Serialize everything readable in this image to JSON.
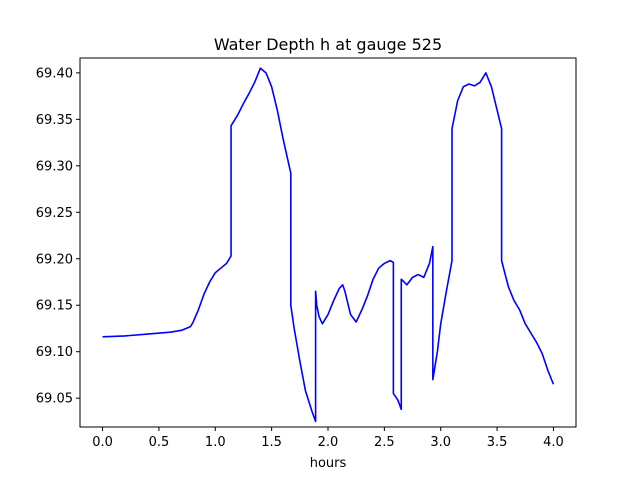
{
  "chart_data": {
    "type": "line",
    "title": "Water Depth h at gauge 525",
    "xlabel": "hours",
    "ylabel": "",
    "xlim": [
      -0.2,
      4.2
    ],
    "ylim": [
      69.019,
      69.416
    ],
    "xticks": [
      0.0,
      0.5,
      1.0,
      1.5,
      2.0,
      2.5,
      3.0,
      3.5,
      4.0
    ],
    "xtick_labels": [
      "0.0",
      "0.5",
      "1.0",
      "1.5",
      "2.0",
      "2.5",
      "3.0",
      "3.5",
      "4.0"
    ],
    "yticks": [
      69.05,
      69.1,
      69.15,
      69.2,
      69.25,
      69.3,
      69.35,
      69.4
    ],
    "ytick_labels": [
      "69.05",
      "69.10",
      "69.15",
      "69.20",
      "69.25",
      "69.30",
      "69.35",
      "69.40"
    ],
    "grid": false,
    "series": [
      {
        "color": "#0000ff",
        "x": [
          0.0,
          0.2,
          0.4,
          0.6,
          0.7,
          0.78,
          0.8,
          0.85,
          0.9,
          0.95,
          1.0,
          1.05,
          1.1,
          1.14,
          1.14,
          1.2,
          1.25,
          1.3,
          1.35,
          1.4,
          1.45,
          1.5,
          1.55,
          1.6,
          1.67,
          1.67,
          1.7,
          1.75,
          1.8,
          1.86,
          1.89,
          1.89,
          1.9,
          1.92,
          1.95,
          2.0,
          2.05,
          2.1,
          2.13,
          2.15,
          2.2,
          2.25,
          2.3,
          2.35,
          2.4,
          2.45,
          2.5,
          2.55,
          2.58,
          2.58,
          2.62,
          2.65,
          2.65,
          2.7,
          2.75,
          2.8,
          2.85,
          2.9,
          2.93,
          2.93,
          2.97,
          3.0,
          3.05,
          3.1,
          3.1,
          3.15,
          3.2,
          3.25,
          3.3,
          3.35,
          3.4,
          3.45,
          3.5,
          3.54,
          3.54,
          3.6,
          3.65,
          3.7,
          3.75,
          3.8,
          3.85,
          3.9,
          3.95,
          4.0
        ],
        "y": [
          69.116,
          69.117,
          69.119,
          69.121,
          69.123,
          69.127,
          69.131,
          69.145,
          69.162,
          69.175,
          69.185,
          69.19,
          69.195,
          69.203,
          69.343,
          69.355,
          69.367,
          69.378,
          69.39,
          69.405,
          69.4,
          69.385,
          69.36,
          69.33,
          69.292,
          69.15,
          69.125,
          69.09,
          69.058,
          69.035,
          69.025,
          69.165,
          69.15,
          69.138,
          69.13,
          69.14,
          69.155,
          69.168,
          69.172,
          69.165,
          69.14,
          69.132,
          69.145,
          69.16,
          69.178,
          69.19,
          69.195,
          69.198,
          69.196,
          69.055,
          69.048,
          69.038,
          69.178,
          69.172,
          69.18,
          69.183,
          69.18,
          69.195,
          69.213,
          69.07,
          69.1,
          69.13,
          69.165,
          69.198,
          69.34,
          69.37,
          69.385,
          69.388,
          69.386,
          69.39,
          69.4,
          69.385,
          69.36,
          69.34,
          69.198,
          69.17,
          69.155,
          69.145,
          69.13,
          69.12,
          69.11,
          69.098,
          69.08,
          69.065
        ]
      }
    ]
  }
}
